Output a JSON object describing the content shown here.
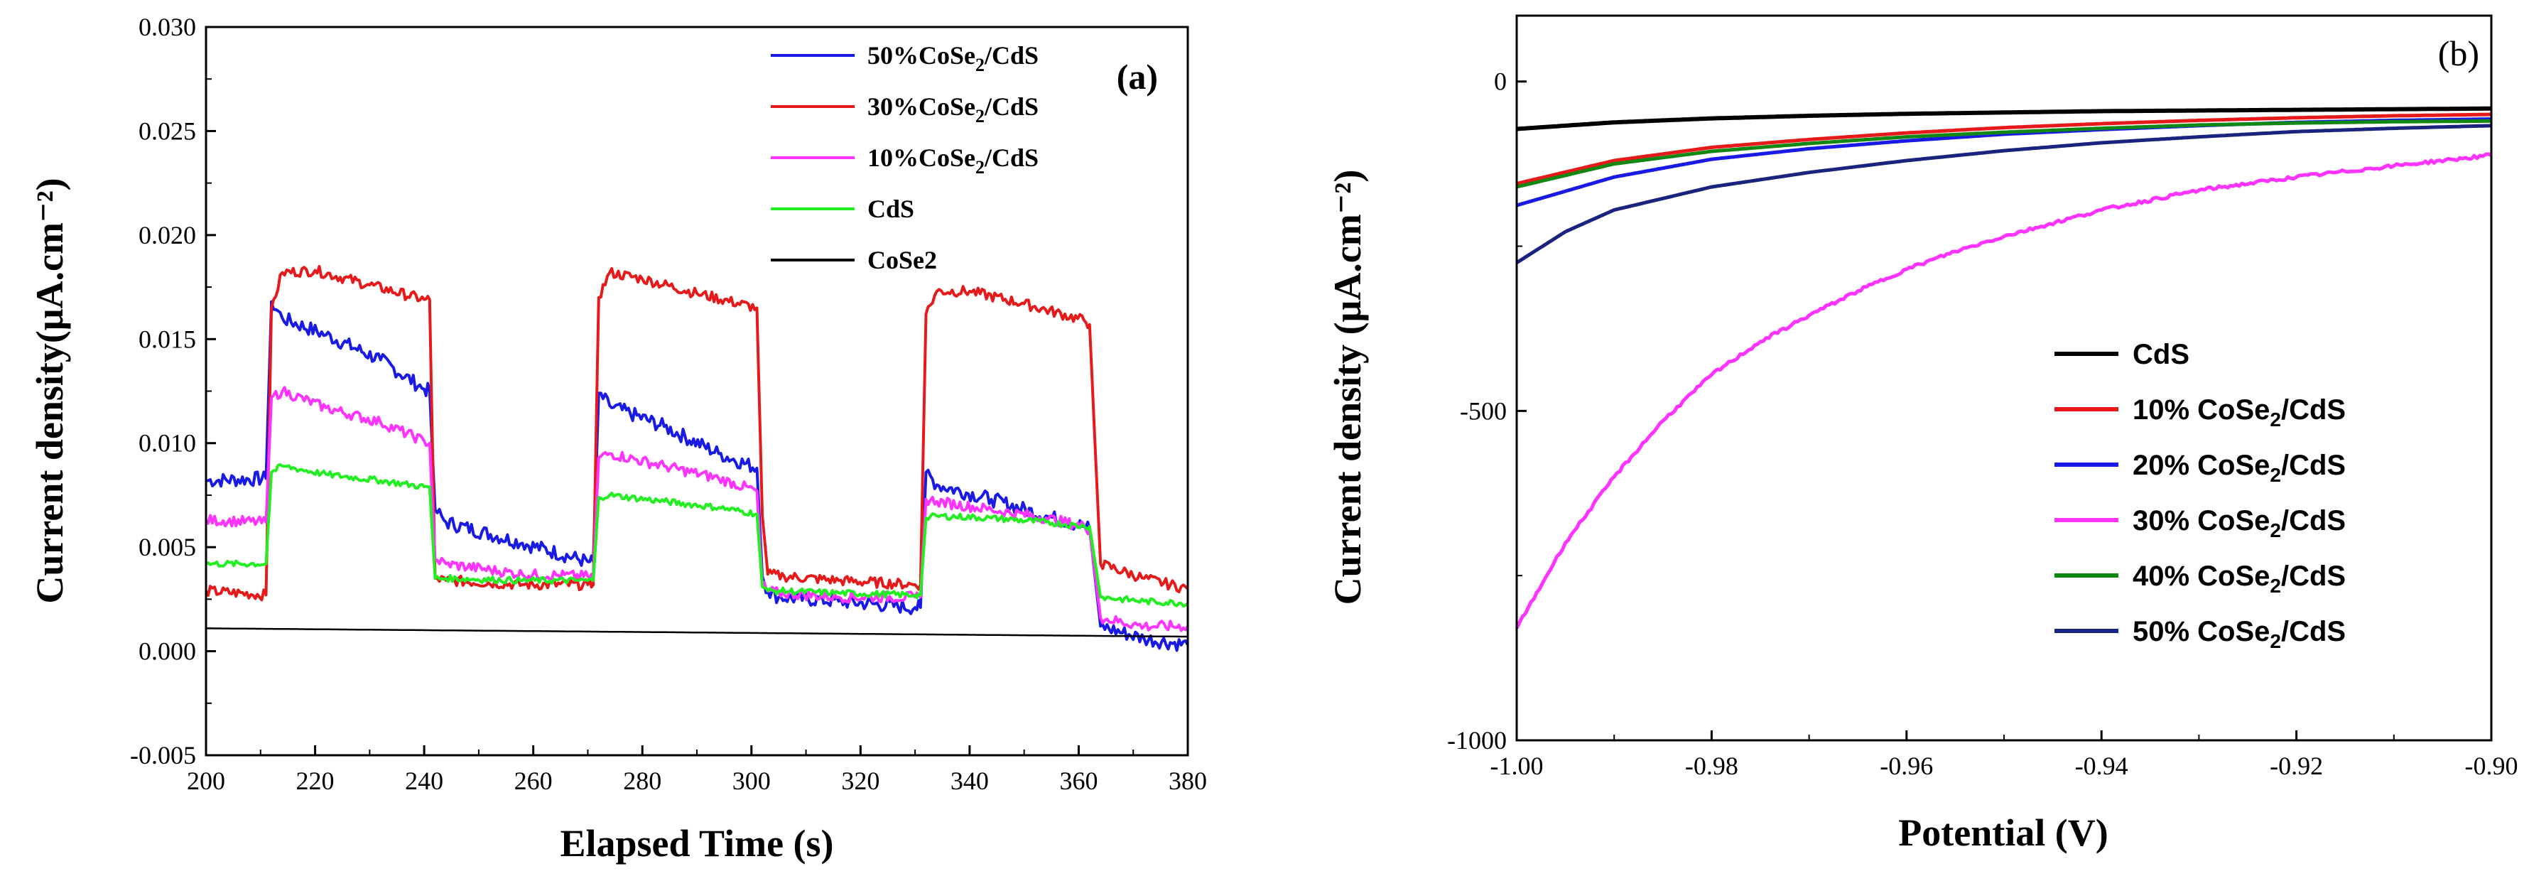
{
  "chart_data": [
    {
      "type": "line",
      "panel_label": "(a)",
      "xlabel": "Elapsed Time (s)",
      "ylabel": "Current density(μA.cm⁻²)",
      "xlim": [
        200,
        380
      ],
      "ylim": [
        -0.005,
        0.03
      ],
      "xticks": [
        "200",
        "220",
        "240",
        "260",
        "280",
        "300",
        "320",
        "340",
        "360",
        "380"
      ],
      "yticks": [
        "-0.005",
        "0.000",
        "0.005",
        "0.010",
        "0.015",
        "0.020",
        "0.025",
        "0.030"
      ],
      "legend_position": "top-right",
      "series": [
        {
          "name": "50%CoSe2/CdS",
          "legend_main": "50%CoSe",
          "legend_sub": "2",
          "legend_tail": "/CdS",
          "color": "#1a1ae6",
          "x": [
            200,
            211,
            212,
            214,
            222,
            232,
            240,
            241,
            242,
            244,
            258,
            270,
            271,
            272,
            274,
            284,
            294,
            301,
            302,
            303,
            305,
            316,
            330,
            331,
            332,
            334,
            344,
            354,
            361,
            362,
            364,
            372,
            380
          ],
          "y": [
            0.0082,
            0.0083,
            0.0168,
            0.016,
            0.0152,
            0.014,
            0.0126,
            0.0125,
            0.0068,
            0.0062,
            0.0052,
            0.0043,
            0.0043,
            0.0124,
            0.0118,
            0.0108,
            0.0095,
            0.0088,
            0.0036,
            0.0029,
            0.0026,
            0.0024,
            0.0021,
            0.0021,
            0.0086,
            0.008,
            0.0073,
            0.0065,
            0.006,
            0.0059,
            0.0012,
            0.0006,
            0.0003
          ]
        },
        {
          "name": "30%CoSe2/CdS",
          "legend_main": "30%CoSe",
          "legend_sub": "2",
          "legend_tail": "/CdS",
          "color": "#e61a1a",
          "x": [
            200,
            211,
            212,
            214,
            220,
            230,
            240,
            241,
            242,
            244,
            258,
            270,
            271,
            272,
            274,
            280,
            290,
            301,
            302,
            303,
            306,
            316,
            330,
            331,
            332,
            334,
            340,
            350,
            361,
            362,
            364,
            372,
            380
          ],
          "y": [
            0.0029,
            0.0027,
            0.0165,
            0.0182,
            0.0183,
            0.0176,
            0.0169,
            0.0169,
            0.0035,
            0.0034,
            0.0032,
            0.0032,
            0.0032,
            0.017,
            0.0182,
            0.0179,
            0.0172,
            0.0165,
            0.0065,
            0.0037,
            0.0036,
            0.0034,
            0.0032,
            0.0032,
            0.0162,
            0.0173,
            0.0173,
            0.0167,
            0.0159,
            0.0157,
            0.0042,
            0.0035,
            0.003
          ]
        },
        {
          "name": "10%CoSe2/CdS",
          "legend_main": "10%CoSe",
          "legend_sub": "2",
          "legend_tail": "/CdS",
          "color": "#ff33ff",
          "x": [
            200,
            211,
            212,
            214,
            222,
            232,
            240,
            241,
            242,
            244,
            258,
            270,
            271,
            272,
            274,
            284,
            294,
            301,
            302,
            303,
            305,
            316,
            330,
            331,
            332,
            334,
            344,
            354,
            361,
            362,
            364,
            372,
            380
          ],
          "y": [
            0.0063,
            0.0062,
            0.0122,
            0.0125,
            0.0117,
            0.011,
            0.0101,
            0.01,
            0.0044,
            0.0042,
            0.0037,
            0.0036,
            0.0036,
            0.0093,
            0.0095,
            0.0089,
            0.0083,
            0.0077,
            0.0032,
            0.0029,
            0.0028,
            0.0026,
            0.0026,
            0.0026,
            0.0073,
            0.0072,
            0.0068,
            0.0064,
            0.006,
            0.0058,
            0.0016,
            0.0012,
            0.0012
          ]
        },
        {
          "name": "CdS",
          "legend_main": "CdS",
          "legend_sub": "",
          "legend_tail": "",
          "color": "#22ee22",
          "x": [
            200,
            211,
            212,
            214,
            222,
            232,
            240,
            241,
            242,
            244,
            258,
            270,
            271,
            272,
            274,
            284,
            294,
            301,
            302,
            303,
            305,
            316,
            330,
            331,
            332,
            334,
            344,
            354,
            361,
            362,
            364,
            372,
            380
          ],
          "y": [
            0.0042,
            0.0042,
            0.0086,
            0.0089,
            0.0085,
            0.0082,
            0.0079,
            0.0079,
            0.0035,
            0.0035,
            0.0034,
            0.0034,
            0.0034,
            0.0074,
            0.0075,
            0.0072,
            0.0069,
            0.0066,
            0.0031,
            0.0029,
            0.0029,
            0.0028,
            0.0027,
            0.0027,
            0.0064,
            0.0065,
            0.0064,
            0.0062,
            0.006,
            0.006,
            0.0026,
            0.0024,
            0.0023
          ]
        },
        {
          "name": "CoSe2",
          "legend_main": "CoSe2",
          "legend_sub": "",
          "legend_tail": "",
          "color": "#000000",
          "x": [
            200,
            380
          ],
          "y": [
            0.0011,
            0.0007
          ]
        }
      ]
    },
    {
      "type": "line",
      "panel_label": "(b)",
      "xlabel": "Potential (V)",
      "ylabel": "Current density (μA.cm⁻²)",
      "xlim": [
        -1.0,
        -0.9
      ],
      "ylim": [
        -1000,
        100
      ],
      "xticks": [
        "-1.00",
        "-0.98",
        "-0.96",
        "-0.94",
        "-0.92",
        "-0.90"
      ],
      "yticks": [
        "0",
        "-500",
        "-1000"
      ],
      "legend_position": "lower-right",
      "series": [
        {
          "name": "CdS",
          "legend_main": "CdS",
          "legend_sub": "",
          "legend_tail": "",
          "color": "#000000",
          "x": [
            -1.0,
            -0.99,
            -0.98,
            -0.97,
            -0.96,
            -0.95,
            -0.94,
            -0.93,
            -0.92,
            -0.91,
            -0.9
          ],
          "y": [
            -72,
            -62,
            -56,
            -52,
            -49,
            -47,
            -45,
            -44,
            -43,
            -42,
            -41
          ]
        },
        {
          "name": "10% CoSe2/CdS",
          "legend_main": "10% CoSe",
          "legend_sub": "2",
          "legend_tail": "/CdS",
          "color": "#e61a1a",
          "x": [
            -1.0,
            -0.99,
            -0.98,
            -0.97,
            -0.96,
            -0.95,
            -0.94,
            -0.93,
            -0.92,
            -0.91,
            -0.9
          ],
          "y": [
            -155,
            -120,
            -100,
            -88,
            -78,
            -70,
            -64,
            -59,
            -55,
            -52,
            -50
          ]
        },
        {
          "name": "20% CoSe2/CdS",
          "legend_main": "20% CoSe",
          "legend_sub": "2",
          "legend_tail": "/CdS",
          "color": "#1a1ae6",
          "x": [
            -1.0,
            -0.99,
            -0.98,
            -0.97,
            -0.96,
            -0.95,
            -0.94,
            -0.93,
            -0.92,
            -0.91,
            -0.9
          ],
          "y": [
            -188,
            -145,
            -118,
            -102,
            -90,
            -80,
            -73,
            -67,
            -62,
            -59,
            -57
          ]
        },
        {
          "name": "30% CoSe2/CdS",
          "legend_main": "30% CoSe",
          "legend_sub": "2",
          "legend_tail": "/CdS",
          "color": "#ff33ff",
          "x": [
            -1.0,
            -0.995,
            -0.99,
            -0.985,
            -0.98,
            -0.975,
            -0.97,
            -0.965,
            -0.96,
            -0.955,
            -0.95,
            -0.94,
            -0.93,
            -0.92,
            -0.91,
            -0.9
          ],
          "y": [
            -830,
            -700,
            -600,
            -515,
            -445,
            -395,
            -355,
            -318,
            -285,
            -258,
            -235,
            -195,
            -165,
            -145,
            -128,
            -112
          ]
        },
        {
          "name": "40% CoSe2/CdS",
          "legend_main": "40% CoSe",
          "legend_sub": "2",
          "legend_tail": "/CdS",
          "color": "#118811",
          "x": [
            -1.0,
            -0.99,
            -0.98,
            -0.97,
            -0.96,
            -0.95,
            -0.94,
            -0.93,
            -0.92,
            -0.91,
            -0.9
          ],
          "y": [
            -160,
            -125,
            -106,
            -94,
            -84,
            -77,
            -71,
            -66,
            -63,
            -61,
            -60
          ]
        },
        {
          "name": "50% CoSe2/CdS",
          "legend_main": "50% CoSe",
          "legend_sub": "2",
          "legend_tail": "/CdS",
          "color": "#1a237e",
          "x": [
            -1.0,
            -0.995,
            -0.99,
            -0.98,
            -0.97,
            -0.96,
            -0.95,
            -0.94,
            -0.93,
            -0.92,
            -0.91,
            -0.9
          ],
          "y": [
            -275,
            -228,
            -195,
            -160,
            -138,
            -120,
            -105,
            -93,
            -84,
            -76,
            -71,
            -67
          ]
        }
      ]
    }
  ]
}
